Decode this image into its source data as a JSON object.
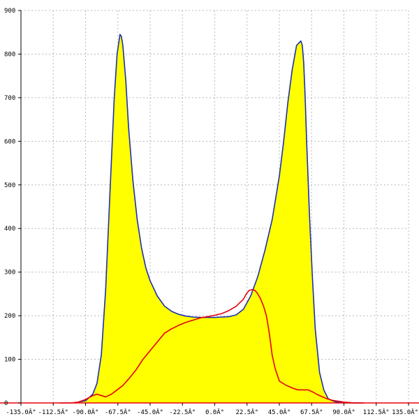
{
  "chart_data": {
    "type": "area",
    "grid": true,
    "xlim": [
      -135,
      135
    ],
    "ylim": [
      0,
      900
    ],
    "x_ticks": [
      -135,
      -112.5,
      -90,
      -67.5,
      -45,
      -22.5,
      0,
      22.5,
      45,
      67.5,
      90,
      112.5,
      135
    ],
    "x_tick_labels": [
      "-135.0Â°",
      "-112.5Â°",
      "-90.0Â°",
      "-67.5Â°",
      "-45.0Â°",
      "-22.5Â°",
      "0.0Â°",
      "22.5Â°",
      "45.0Â°",
      "67.5Â°",
      "90.0Â°",
      "112.5Â°",
      "135.0Â°"
    ],
    "y_ticks": [
      0,
      100,
      200,
      300,
      400,
      500,
      600,
      700,
      800,
      900
    ],
    "y_tick_labels": [
      "0",
      "100",
      "200",
      "300",
      "400",
      "500",
      "600",
      "700",
      "800",
      "900"
    ],
    "series": [
      {
        "color": "#1a2fb0",
        "fill": "#ffff00",
        "filled": true,
        "x": [
          -98,
          -90,
          -85,
          -82,
          -79,
          -76,
          -73,
          -70,
          -68,
          -66,
          -65,
          -64,
          -63,
          -62,
          -60,
          -57,
          -54,
          -51,
          -48,
          -45,
          -40,
          -35,
          -30,
          -25,
          -20,
          -15,
          -10,
          -5,
          0,
          5,
          10,
          15,
          20,
          25,
          30,
          35,
          40,
          45,
          48,
          51,
          54,
          57,
          60,
          61,
          62,
          63,
          64,
          66,
          68,
          70,
          73,
          76,
          79,
          82,
          85,
          88,
          91,
          95,
          100,
          103
        ],
        "y": [
          0,
          5,
          20,
          45,
          110,
          260,
          480,
          700,
          800,
          845,
          840,
          820,
          780,
          740,
          630,
          510,
          420,
          355,
          310,
          280,
          245,
          222,
          210,
          203,
          199,
          197,
          196,
          196,
          196,
          197,
          198,
          202,
          215,
          245,
          290,
          350,
          420,
          520,
          600,
          690,
          765,
          820,
          830,
          820,
          780,
          700,
          600,
          430,
          290,
          170,
          70,
          30,
          10,
          5,
          2,
          1,
          0,
          0,
          0,
          0
        ]
      },
      {
        "color": "#e8000b",
        "filled": false,
        "x": [
          -108,
          -100,
          -95,
          -90,
          -86,
          -84,
          -82,
          -80,
          -76,
          -72,
          -68,
          -64,
          -60,
          -55,
          -50,
          -45,
          -40,
          -35,
          -30,
          -25,
          -20,
          -15,
          -10,
          -5,
          0,
          5,
          10,
          15,
          20,
          22,
          24,
          26,
          28,
          30,
          32,
          34,
          36,
          37,
          38,
          39,
          40,
          42,
          45,
          50,
          55,
          58,
          60,
          62,
          63,
          65,
          67,
          69,
          71,
          73,
          75,
          78,
          82,
          86,
          90,
          94,
          98,
          100,
          102,
          104
        ],
        "y": [
          0,
          0,
          2,
          8,
          15,
          18,
          20,
          18,
          14,
          20,
          30,
          40,
          55,
          75,
          100,
          120,
          140,
          160,
          170,
          178,
          185,
          190,
          195,
          198,
          201,
          205,
          212,
          222,
          238,
          250,
          258,
          260,
          258,
          250,
          238,
          222,
          200,
          180,
          160,
          135,
          110,
          80,
          50,
          40,
          33,
          30,
          30,
          30,
          30,
          30,
          27,
          24,
          20,
          17,
          14,
          10,
          6,
          4,
          2,
          1,
          0,
          0,
          0,
          0
        ]
      }
    ]
  }
}
